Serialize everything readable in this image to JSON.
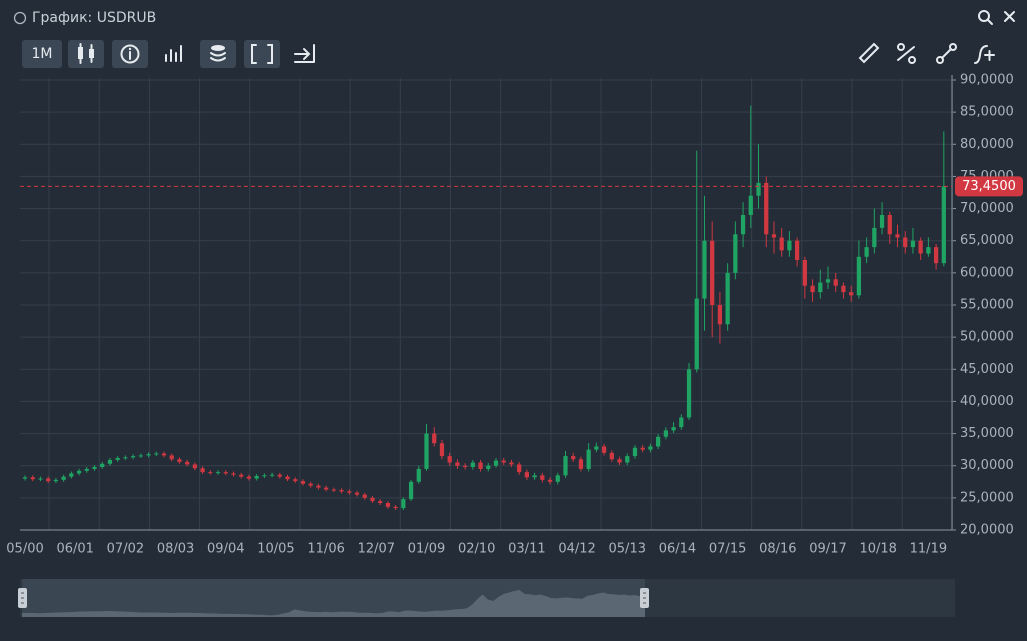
{
  "window": {
    "title": "График: USDRUB",
    "timeframe": "1M"
  },
  "chart_data": {
    "type": "candlestick",
    "up_color": "#1fa463",
    "down_color": "#d23842",
    "grid": true,
    "xlim": [
      -0.65,
      119.8
    ],
    "xticks": [
      {
        "value": 0,
        "label": "05/00"
      },
      {
        "value": 6.5,
        "label": "06/01"
      },
      {
        "value": 13,
        "label": "07/02"
      },
      {
        "value": 19.5,
        "label": "08/03"
      },
      {
        "value": 26,
        "label": "09/04"
      },
      {
        "value": 32.5,
        "label": "10/05"
      },
      {
        "value": 39,
        "label": "11/06"
      },
      {
        "value": 45.5,
        "label": "12/07"
      },
      {
        "value": 52,
        "label": "01/09"
      },
      {
        "value": 58.5,
        "label": "02/10"
      },
      {
        "value": 65,
        "label": "03/11"
      },
      {
        "value": 71.5,
        "label": "04/12"
      },
      {
        "value": 78,
        "label": "05/13"
      },
      {
        "value": 84.5,
        "label": "06/14"
      },
      {
        "value": 91,
        "label": "07/15"
      },
      {
        "value": 97.5,
        "label": "08/16"
      },
      {
        "value": 104,
        "label": "09/17"
      },
      {
        "value": 110.5,
        "label": "10/18"
      },
      {
        "value": 117,
        "label": "11/19"
      }
    ],
    "ylim": [
      20,
      90
    ],
    "yticks": [
      {
        "value": 20,
        "label": "20,0000"
      },
      {
        "value": 25,
        "label": "25,0000"
      },
      {
        "value": 30,
        "label": "30,0000"
      },
      {
        "value": 35,
        "label": "35,0000"
      },
      {
        "value": 40,
        "label": "40,0000"
      },
      {
        "value": 45,
        "label": "45,0000"
      },
      {
        "value": 50,
        "label": "50,0000"
      },
      {
        "value": 55,
        "label": "55,0000"
      },
      {
        "value": 60,
        "label": "60,0000"
      },
      {
        "value": 65,
        "label": "65,0000"
      },
      {
        "value": 70,
        "label": "70,0000"
      },
      {
        "value": 75,
        "label": "75,0000"
      },
      {
        "value": 80,
        "label": "80,0000"
      },
      {
        "value": 85,
        "label": "85,0000"
      },
      {
        "value": 90,
        "label": "90,0000"
      }
    ],
    "last_price": {
      "value": 73.45,
      "label": "73,4500",
      "color": "#d23842"
    },
    "open": [
      28.0,
      28.2,
      27.9,
      28.0,
      27.6,
      27.8,
      28.3,
      28.8,
      29.2,
      29.5,
      29.8,
      30.3,
      30.9,
      31.2,
      31.3,
      31.5,
      31.6,
      31.8,
      31.9,
      31.6,
      31.0,
      30.6,
      30.2,
      29.6,
      29.0,
      28.9,
      29.0,
      28.8,
      28.6,
      28.3,
      28.0,
      28.4,
      28.5,
      28.6,
      28.3,
      27.9,
      27.6,
      27.2,
      26.9,
      26.6,
      26.3,
      26.2,
      26.0,
      25.8,
      25.5,
      25.0,
      24.5,
      24.2,
      23.6,
      23.4,
      24.8,
      27.5,
      29.5,
      35.0,
      33.5,
      31.5,
      30.5,
      30.0,
      29.8,
      30.5,
      29.5,
      30.0,
      30.8,
      30.5,
      30.2,
      29.0,
      28.2,
      28.5,
      27.8,
      27.5,
      28.5,
      31.5,
      31.0,
      29.5,
      32.5,
      33.0,
      32.0,
      31.0,
      30.5,
      31.5,
      32.8,
      32.5,
      33.0,
      34.5,
      35.5,
      36.0,
      37.5,
      45.0,
      56.0,
      65.0,
      55.0,
      52.0,
      60.0,
      66.0,
      69.0,
      72.0,
      74.0,
      66.0,
      65.5,
      63.5,
      65.0,
      62.0,
      58.0,
      57.0,
      58.5,
      59.0,
      58.0,
      57.0,
      56.5,
      62.5,
      64.0,
      67.0,
      69.0,
      66.0,
      65.5,
      64.0,
      65.0,
      63.0,
      64.0,
      61.5
    ],
    "high": [
      28.5,
      28.5,
      28.3,
      28.3,
      28.1,
      28.6,
      29.1,
      29.5,
      29.8,
      30.1,
      30.6,
      31.2,
      31.5,
      31.6,
      31.8,
      31.9,
      32.1,
      32.2,
      32.2,
      31.9,
      31.3,
      30.9,
      30.5,
      29.9,
      29.3,
      29.3,
      29.3,
      29.1,
      28.9,
      28.6,
      28.7,
      28.8,
      28.9,
      28.9,
      28.6,
      28.2,
      27.9,
      27.5,
      27.2,
      26.9,
      26.6,
      26.5,
      26.3,
      26.1,
      25.8,
      25.3,
      24.8,
      24.5,
      23.9,
      25.1,
      27.8,
      30.0,
      36.5,
      36.0,
      34.0,
      32.0,
      31.0,
      30.4,
      30.9,
      30.9,
      30.4,
      31.2,
      31.2,
      30.9,
      30.6,
      29.4,
      28.9,
      28.9,
      28.2,
      28.9,
      32.3,
      32.0,
      31.4,
      33.5,
      33.6,
      33.4,
      32.4,
      31.4,
      31.9,
      33.2,
      33.2,
      33.4,
      34.9,
      36.0,
      36.8,
      38.0,
      46.0,
      79.0,
      72.0,
      68.0,
      57.0,
      61.5,
      68.0,
      71.0,
      86.0,
      80.0,
      75.0,
      68.0,
      67.0,
      66.5,
      65.5,
      62.5,
      59.0,
      60.5,
      61.0,
      60.0,
      58.5,
      58.0,
      65.0,
      65.5,
      70.0,
      71.0,
      69.5,
      67.5,
      66.5,
      67.0,
      65.5,
      65.5,
      64.5,
      82.0
    ],
    "low": [
      27.7,
      27.6,
      27.6,
      27.3,
      27.3,
      27.5,
      28.0,
      28.5,
      28.9,
      29.2,
      29.5,
      30.0,
      30.6,
      30.9,
      31.0,
      31.2,
      31.3,
      31.5,
      31.3,
      30.7,
      30.3,
      29.9,
      29.3,
      28.7,
      28.6,
      28.6,
      28.5,
      28.3,
      28.0,
      27.7,
      27.7,
      28.1,
      28.2,
      28.0,
      27.6,
      27.3,
      26.9,
      26.6,
      26.3,
      26.0,
      25.9,
      25.7,
      25.5,
      25.2,
      24.7,
      24.2,
      23.9,
      23.3,
      23.1,
      23.1,
      24.5,
      27.2,
      29.2,
      33.0,
      31.0,
      30.0,
      29.5,
      29.4,
      29.4,
      29.1,
      29.1,
      29.7,
      30.1,
      29.8,
      28.6,
      27.8,
      27.8,
      27.4,
      27.1,
      27.1,
      28.1,
      30.6,
      29.1,
      29.1,
      32.1,
      31.6,
      30.6,
      30.1,
      30.1,
      31.1,
      32.1,
      32.1,
      32.6,
      34.1,
      35.1,
      35.6,
      37.1,
      44.5,
      51.0,
      50.0,
      49.0,
      51.0,
      59.0,
      64.0,
      67.0,
      70.0,
      64.0,
      63.0,
      62.5,
      62.5,
      61.0,
      56.0,
      55.5,
      56.0,
      57.5,
      57.0,
      56.0,
      55.5,
      56.0,
      61.5,
      63.0,
      66.0,
      64.5,
      64.0,
      63.0,
      63.0,
      62.0,
      62.5,
      60.5,
      61.0
    ],
    "close": [
      28.2,
      27.9,
      28.0,
      27.6,
      27.8,
      28.3,
      28.8,
      29.2,
      29.5,
      29.8,
      30.3,
      30.9,
      31.2,
      31.3,
      31.5,
      31.6,
      31.8,
      31.9,
      31.6,
      31.0,
      30.6,
      30.2,
      29.6,
      29.0,
      28.9,
      29.0,
      28.8,
      28.6,
      28.3,
      28.0,
      28.4,
      28.5,
      28.6,
      28.3,
      27.9,
      27.6,
      27.2,
      26.9,
      26.6,
      26.3,
      26.2,
      26.0,
      25.8,
      25.5,
      25.0,
      24.5,
      24.2,
      23.6,
      23.4,
      24.8,
      27.5,
      29.5,
      35.0,
      33.5,
      31.5,
      30.5,
      30.0,
      29.8,
      30.5,
      29.5,
      30.0,
      30.8,
      30.5,
      30.2,
      29.0,
      28.2,
      28.5,
      27.8,
      27.5,
      28.5,
      31.5,
      31.0,
      29.5,
      32.5,
      33.0,
      32.0,
      31.0,
      30.5,
      31.5,
      32.8,
      32.5,
      33.0,
      34.5,
      35.5,
      36.0,
      37.5,
      45.0,
      56.0,
      65.0,
      55.0,
      52.0,
      60.0,
      66.0,
      69.0,
      72.0,
      74.0,
      66.0,
      65.5,
      63.5,
      65.0,
      62.0,
      58.0,
      57.0,
      58.5,
      59.0,
      58.0,
      57.0,
      56.5,
      62.5,
      64.0,
      67.0,
      69.0,
      66.0,
      65.5,
      64.0,
      65.0,
      63.0,
      64.0,
      61.5,
      73.45
    ]
  }
}
